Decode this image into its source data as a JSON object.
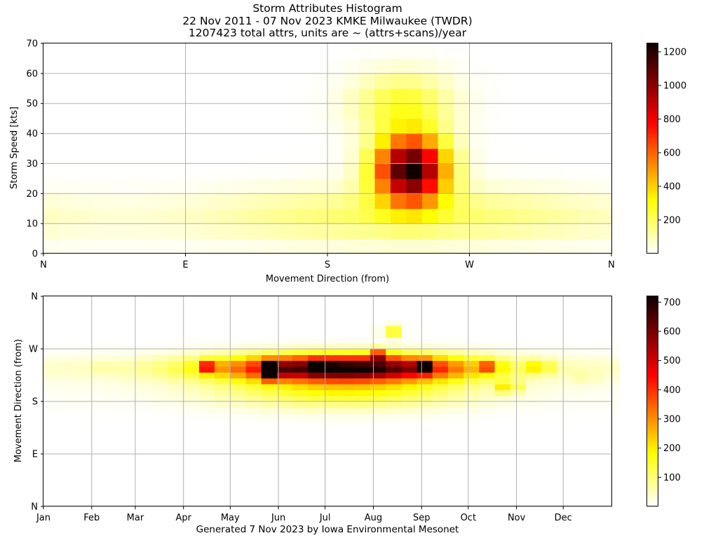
{
  "page": {
    "title_lines": [
      "Storm Attributes Histogram",
      "22 Nov 2011 - 07 Nov 2023 KMKE Milwaukee (TWDR)",
      "1207423 total attrs, units are ~ (attrs+scans)/year"
    ],
    "footer": "Generated 7 Nov 2023 by Iowa Environmental Mesonet"
  },
  "chart_data": [
    {
      "type": "heatmap",
      "colormap": "hot_r",
      "ylabel": "Storm Speed [kts]",
      "xlabel": "Movement Direction (from)",
      "x_tick_labels": [
        "N",
        "E",
        "S",
        "W",
        "N"
      ],
      "y_ticks": [
        0,
        10,
        20,
        30,
        40,
        50,
        60,
        70
      ],
      "xlim": [
        0,
        360
      ],
      "ylim": [
        0,
        70
      ],
      "x_bin_deg": 10,
      "y_bin_kts": 5,
      "colorbar": {
        "ticks": [
          200,
          400,
          600,
          800,
          1000,
          1200
        ],
        "vmin": 0,
        "vmax": 1250
      },
      "grid": true,
      "approx_cells": [
        {
          "dir": 235,
          "speed": 32.5,
          "value": 1240
        },
        {
          "dir": 225,
          "speed": 32.5,
          "value": 1200
        },
        {
          "dir": 245,
          "speed": 32.5,
          "value": 1150
        },
        {
          "dir": 235,
          "speed": 22.5,
          "value": 1180
        },
        {
          "dir": 215,
          "speed": 22.5,
          "value": 1000
        },
        {
          "dir": 255,
          "speed": 32.5,
          "value": 1000
        },
        {
          "dir": 205,
          "speed": 32.5,
          "value": 900
        },
        {
          "dir": 235,
          "speed": 42.5,
          "value": 820
        },
        {
          "dir": 215,
          "speed": 47.5,
          "value": 700
        },
        {
          "dir": 255,
          "speed": 17.5,
          "value": 800
        },
        {
          "dir": 185,
          "speed": 27.5,
          "value": 650
        },
        {
          "dir": 275,
          "speed": 27.5,
          "value": 600
        },
        {
          "dir": 165,
          "speed": 22.5,
          "value": 420
        },
        {
          "dir": 295,
          "speed": 22.5,
          "value": 380
        },
        {
          "dir": 225,
          "speed": 57.5,
          "value": 260
        },
        {
          "dir": 20,
          "speed": 12.5,
          "value": 110
        },
        {
          "dir": 90,
          "speed": 12.5,
          "value": 60
        },
        {
          "dir": 340,
          "speed": 12.5,
          "value": 140
        }
      ]
    },
    {
      "type": "heatmap",
      "colormap": "hot_r",
      "ylabel": "Movement Direction (from)",
      "x_tick_labels": [
        "Jan",
        "Feb",
        "Mar",
        "Apr",
        "May",
        "Jun",
        "Jul",
        "Aug",
        "Sep",
        "Oct",
        "Nov",
        "Dec"
      ],
      "y_tick_labels": [
        "N",
        "E",
        "S",
        "W",
        "N"
      ],
      "xlim_days": [
        1,
        366
      ],
      "ylim_deg": [
        0,
        360
      ],
      "x_bin_days": 10,
      "y_bin_deg": 10,
      "colorbar": {
        "ticks": [
          100,
          200,
          300,
          400,
          500,
          600,
          700
        ],
        "vmin": 0,
        "vmax": 720
      },
      "grid": true,
      "approx_cells": [
        {
          "day": 148,
          "dir": 240,
          "value": 715
        },
        {
          "day": 245,
          "dir": 240,
          "value": 700
        },
        {
          "day": 148,
          "dir": 225,
          "value": 560
        },
        {
          "day": 107,
          "dir": 240,
          "value": 540
        },
        {
          "day": 178,
          "dir": 240,
          "value": 520
        },
        {
          "day": 217,
          "dir": 260,
          "value": 500
        },
        {
          "day": 288,
          "dir": 240,
          "value": 450
        },
        {
          "day": 300,
          "dir": 205,
          "value": 420
        },
        {
          "day": 320,
          "dir": 240,
          "value": 380
        },
        {
          "day": 225,
          "dir": 300,
          "value": 330
        },
        {
          "day": 40,
          "dir": 240,
          "value": 60
        },
        {
          "day": 350,
          "dir": 220,
          "value": 90
        }
      ]
    }
  ]
}
